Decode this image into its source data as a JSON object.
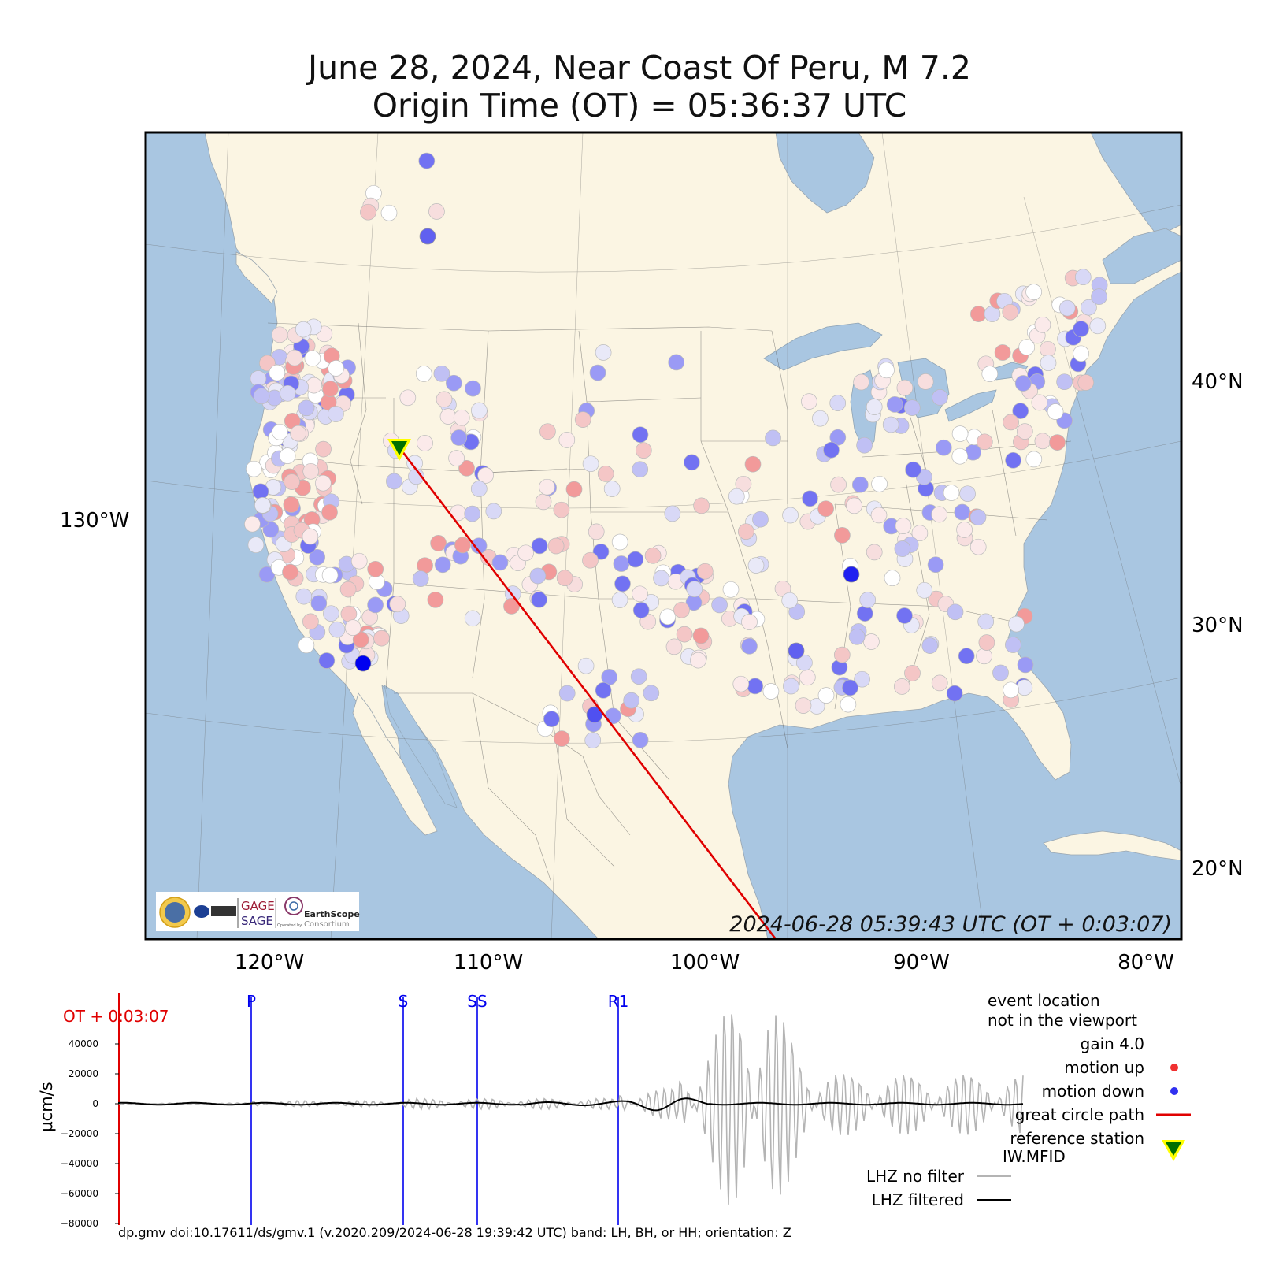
{
  "title": {
    "line1": "June 28, 2024, Near Coast Of Peru, M 7.2",
    "line2": "Origin Time (OT) = 05:36:37 UTC"
  },
  "map": {
    "timestamp": "2024-06-28 05:39:43 UTC (OT + 0:03:07)",
    "lon_labels": [
      "120°W",
      "110°W",
      "100°W",
      "90°W",
      "80°W"
    ],
    "lat_labels": [
      "40°N",
      "30°N",
      "20°N"
    ],
    "left_label": "130°W",
    "colors": {
      "land": "#fbf5e3",
      "water": "#a9c6e1",
      "path": "#e00000",
      "station_up": "#f28e8e",
      "station_down": "#5a5af5"
    },
    "logo": {
      "gage": "GAGE",
      "sage": "SAGE",
      "earthscope": "EarthScope",
      "consortium": "Consortium",
      "operated": "Operated by"
    },
    "reference_station": "IW.MFID"
  },
  "seismogram": {
    "ot_label": "OT + 0:03:07",
    "phases": [
      "P",
      "S",
      "SS",
      "R1"
    ],
    "y_ticks": [
      "40000",
      "20000",
      "0",
      "−20000",
      "−40000",
      "−60000",
      "−80000"
    ],
    "ylabel": "μcm/s",
    "colors": {
      "phase": "#0000ee",
      "ot": "#e00000",
      "unfiltered": "#b4b4b4",
      "filtered": "#000000"
    }
  },
  "legend": {
    "event_line1": "event location",
    "event_line2": "not in the viewport",
    "gain": "gain  4.0",
    "motion_up": "motion up",
    "motion_down": "motion down",
    "great_circle": "great circle path",
    "ref_station_line1": "reference station",
    "ref_station_line2": "IW.MFID",
    "no_filter": "LHZ no filter",
    "filtered": "LHZ filtered"
  },
  "footer": "dp.gmv doi:10.17611/ds/gmv.1 (v.2020.209/2024-06-28 19:39:42 UTC) band: LH, BH, or HH; orientation: Z"
}
